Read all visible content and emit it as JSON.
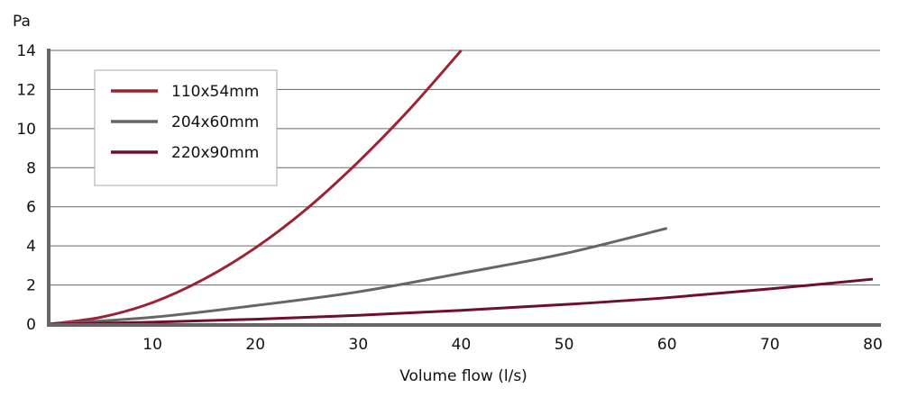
{
  "chart_data": {
    "type": "line",
    "title": "",
    "xlabel": "Volume flow (l/s)",
    "ylabel": "Pa",
    "xlim": [
      0,
      80
    ],
    "ylim": [
      0,
      14
    ],
    "xticks": [
      10,
      20,
      30,
      40,
      50,
      60,
      70,
      80
    ],
    "yticks": [
      0,
      2,
      4,
      6,
      8,
      10,
      12,
      14
    ],
    "grid": "horizontal",
    "legend_position": "upper-left",
    "series": [
      {
        "name": "110x54mm",
        "color": "#9b2335",
        "x": [
          0,
          5,
          10,
          15,
          20,
          25,
          30,
          35,
          40
        ],
        "y": [
          0,
          0.35,
          1.1,
          2.3,
          3.9,
          5.9,
          8.3,
          11.0,
          14.0
        ]
      },
      {
        "name": "204x60mm",
        "color": "#666666",
        "x": [
          0,
          10,
          20,
          30,
          40,
          50,
          60
        ],
        "y": [
          0,
          0.35,
          0.95,
          1.65,
          2.6,
          3.6,
          4.9
        ]
      },
      {
        "name": "220x90mm",
        "color": "#6e0f2c",
        "x": [
          0,
          10,
          20,
          30,
          40,
          50,
          60,
          70,
          80
        ],
        "y": [
          0,
          0.1,
          0.25,
          0.45,
          0.7,
          1.0,
          1.35,
          1.8,
          2.3
        ]
      }
    ]
  }
}
